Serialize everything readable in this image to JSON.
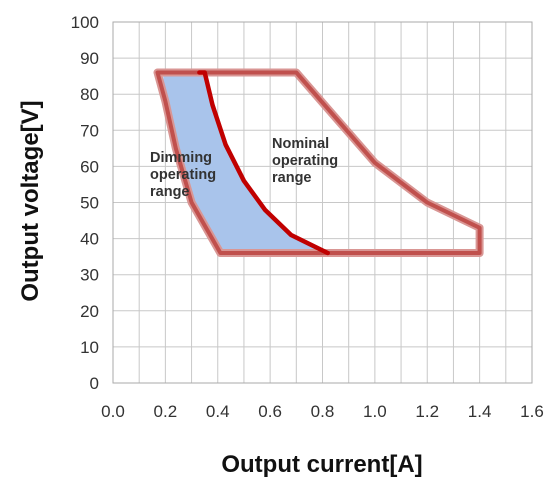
{
  "chart_data": {
    "type": "area",
    "title": "",
    "xlabel": "Output current[A]",
    "ylabel": "Output voltage[V]",
    "xlim": [
      0.0,
      1.6
    ],
    "ylim": [
      0,
      100
    ],
    "x_ticks": [
      "0.0",
      "0.2",
      "0.4",
      "0.6",
      "0.8",
      "1.0",
      "1.2",
      "1.4",
      "1.6"
    ],
    "y_ticks": [
      "0",
      "10",
      "20",
      "30",
      "40",
      "50",
      "60",
      "70",
      "80",
      "90",
      "100"
    ],
    "grid": true,
    "colors": {
      "outline": "#c0504d",
      "outline_light": "#d99694",
      "fill": "#a9c4eb",
      "grid": "#c8c8c8"
    },
    "regions": [
      {
        "label": "Nominal operating range",
        "label_lines": [
          "Nominal",
          "operating",
          "range"
        ],
        "points": [
          [
            0.17,
            86
          ],
          [
            0.7,
            86
          ],
          [
            0.82,
            76
          ],
          [
            1.0,
            61
          ],
          [
            1.2,
            50
          ],
          [
            1.4,
            43
          ],
          [
            1.4,
            36
          ],
          [
            0.41,
            36
          ],
          [
            0.3,
            50
          ],
          [
            0.24,
            65
          ],
          [
            0.2,
            78
          ],
          [
            0.17,
            86
          ]
        ]
      },
      {
        "label": "Dimming operating range",
        "label_lines": [
          "Dimming",
          "operating",
          "range"
        ],
        "points": [
          [
            0.19,
            86
          ],
          [
            0.35,
            86
          ],
          [
            0.38,
            77
          ],
          [
            0.43,
            66
          ],
          [
            0.5,
            56
          ],
          [
            0.58,
            48
          ],
          [
            0.68,
            41
          ],
          [
            0.8,
            36
          ],
          [
            0.41,
            36
          ],
          [
            0.3,
            50
          ],
          [
            0.24,
            65
          ],
          [
            0.2,
            78
          ],
          [
            0.19,
            86
          ]
        ]
      }
    ],
    "boundary_curve": {
      "label": "",
      "points": [
        [
          0.33,
          86
        ],
        [
          0.35,
          86
        ],
        [
          0.38,
          77
        ],
        [
          0.43,
          66
        ],
        [
          0.5,
          56
        ],
        [
          0.58,
          48
        ],
        [
          0.68,
          41
        ],
        [
          0.82,
          36
        ]
      ]
    }
  }
}
